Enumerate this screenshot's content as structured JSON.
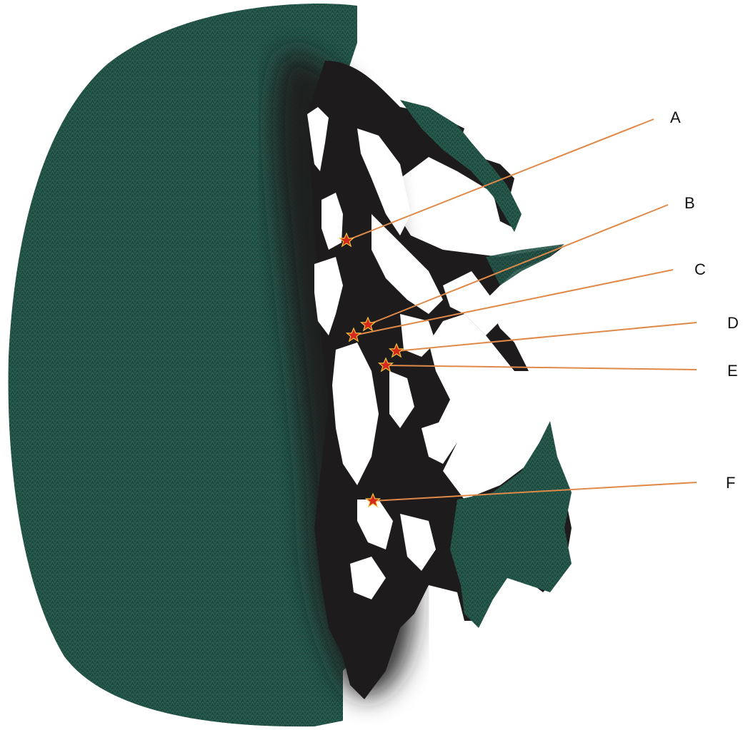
{
  "map": {
    "colors": {
      "ocean_mesh": "#1f4a3f",
      "mesh_lines": "#2f6f5f",
      "dense_mesh": "#1e1b1c",
      "land": "#ffffff",
      "leader_line": "#e08a4a",
      "marker": "#d42a1e",
      "marker_edge": "#f0c040"
    },
    "stations": [
      {
        "id": "A",
        "label": "A",
        "icon": "star-marker"
      },
      {
        "id": "B",
        "label": "B",
        "icon": "star-marker"
      },
      {
        "id": "C",
        "label": "C",
        "icon": "star-marker"
      },
      {
        "id": "D",
        "label": "D",
        "icon": "star-marker"
      },
      {
        "id": "E",
        "label": "E",
        "icon": "star-marker"
      },
      {
        "id": "F",
        "label": "F",
        "icon": "star-marker"
      }
    ]
  }
}
